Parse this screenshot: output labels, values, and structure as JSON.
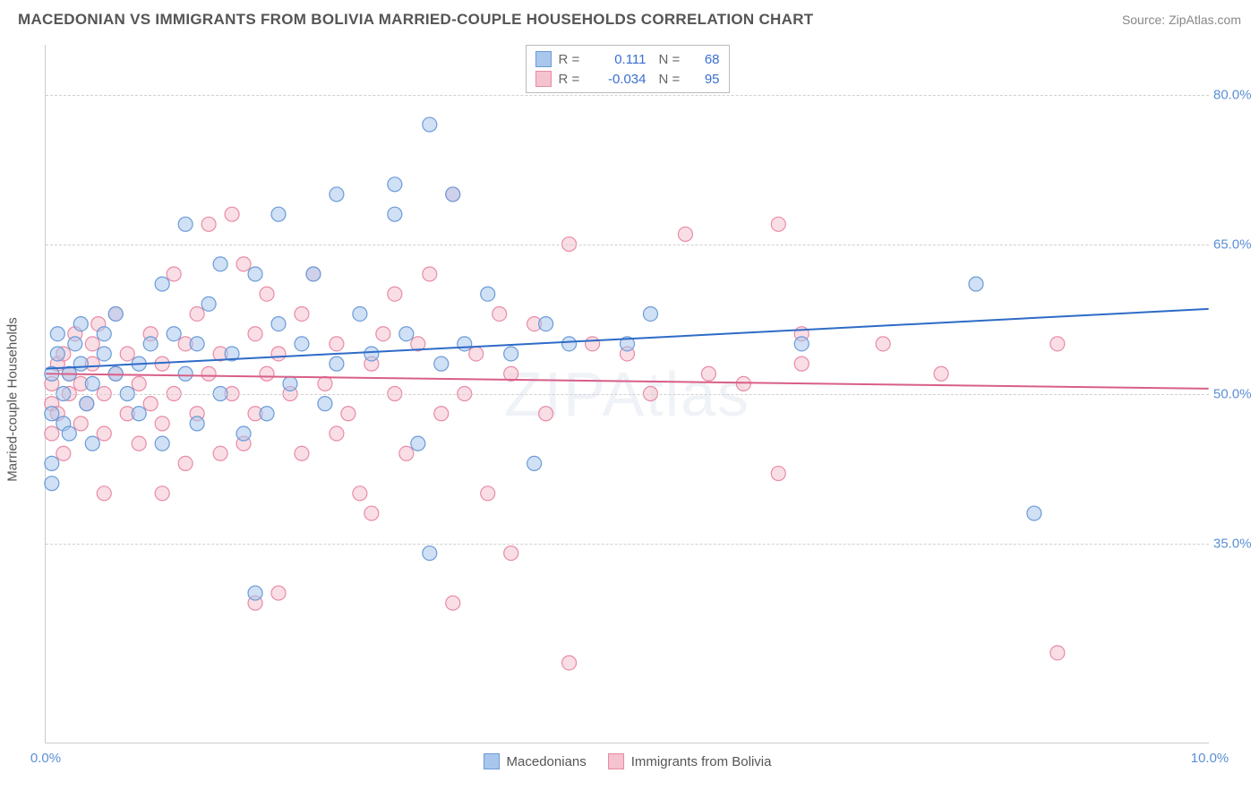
{
  "header": {
    "title": "MACEDONIAN VS IMMIGRANTS FROM BOLIVIA MARRIED-COUPLE HOUSEHOLDS CORRELATION CHART",
    "source": "Source: ZipAtlas.com"
  },
  "watermark": "ZIPAtlas",
  "chart": {
    "type": "scatter",
    "ylabel": "Married-couple Households",
    "xlim": [
      0,
      10
    ],
    "ylim": [
      15,
      85
    ],
    "xticks": [
      {
        "v": 0,
        "label": "0.0%"
      },
      {
        "v": 10,
        "label": "10.0%"
      }
    ],
    "yticks": [
      {
        "v": 35,
        "label": "35.0%"
      },
      {
        "v": 50,
        "label": "50.0%"
      },
      {
        "v": 65,
        "label": "65.0%"
      },
      {
        "v": 80,
        "label": "80.0%"
      }
    ],
    "grid_color": "#d0d0d0",
    "background_color": "#ffffff",
    "marker_radius": 8,
    "marker_opacity": 0.55,
    "line_width": 2,
    "series": [
      {
        "name": "Macedonians",
        "color_fill": "#a9c7ec",
        "color_stroke": "#6a9bd8",
        "line_color": "#2e6bc7",
        "R": "0.111",
        "N": "68",
        "trend": {
          "x1": 0,
          "y1": 52.5,
          "x2": 10,
          "y2": 58.5
        },
        "points": [
          [
            0.05,
            52
          ],
          [
            0.05,
            48
          ],
          [
            0.05,
            43
          ],
          [
            0.05,
            41
          ],
          [
            0.1,
            54
          ],
          [
            0.1,
            56
          ],
          [
            0.15,
            50
          ],
          [
            0.15,
            47
          ],
          [
            0.2,
            52
          ],
          [
            0.2,
            46
          ],
          [
            0.25,
            55
          ],
          [
            0.3,
            53
          ],
          [
            0.3,
            57
          ],
          [
            0.35,
            49
          ],
          [
            0.4,
            51
          ],
          [
            0.4,
            45
          ],
          [
            0.5,
            54
          ],
          [
            0.5,
            56
          ],
          [
            0.6,
            58
          ],
          [
            0.6,
            52
          ],
          [
            0.7,
            50
          ],
          [
            0.8,
            48
          ],
          [
            0.8,
            53
          ],
          [
            0.9,
            55
          ],
          [
            1.0,
            61
          ],
          [
            1.0,
            45
          ],
          [
            1.1,
            56
          ],
          [
            1.2,
            67
          ],
          [
            1.2,
            52
          ],
          [
            1.3,
            55
          ],
          [
            1.3,
            47
          ],
          [
            1.4,
            59
          ],
          [
            1.5,
            50
          ],
          [
            1.5,
            63
          ],
          [
            1.6,
            54
          ],
          [
            1.7,
            46
          ],
          [
            1.8,
            62
          ],
          [
            1.8,
            30
          ],
          [
            1.9,
            48
          ],
          [
            2.0,
            57
          ],
          [
            2.0,
            68
          ],
          [
            2.1,
            51
          ],
          [
            2.2,
            55
          ],
          [
            2.3,
            62
          ],
          [
            2.4,
            49
          ],
          [
            2.5,
            70
          ],
          [
            2.5,
            53
          ],
          [
            2.7,
            58
          ],
          [
            2.8,
            54
          ],
          [
            3.0,
            68
          ],
          [
            3.0,
            71
          ],
          [
            3.1,
            56
          ],
          [
            3.2,
            45
          ],
          [
            3.3,
            34
          ],
          [
            3.3,
            77
          ],
          [
            3.4,
            53
          ],
          [
            3.5,
            70
          ],
          [
            3.6,
            55
          ],
          [
            3.8,
            60
          ],
          [
            4.0,
            54
          ],
          [
            4.2,
            43
          ],
          [
            4.3,
            57
          ],
          [
            4.5,
            55
          ],
          [
            5.0,
            55
          ],
          [
            5.2,
            58
          ],
          [
            6.5,
            55
          ],
          [
            8.0,
            61
          ],
          [
            8.5,
            38
          ]
        ]
      },
      {
        "name": "Immigrants from Bolivia",
        "color_fill": "#f5c2cf",
        "color_stroke": "#e88ba5",
        "line_color": "#d85f88",
        "R": "-0.034",
        "N": "95",
        "trend": {
          "x1": 0,
          "y1": 52.0,
          "x2": 10,
          "y2": 50.5
        },
        "points": [
          [
            0.05,
            51
          ],
          [
            0.05,
            49
          ],
          [
            0.05,
            46
          ],
          [
            0.1,
            53
          ],
          [
            0.1,
            48
          ],
          [
            0.15,
            54
          ],
          [
            0.15,
            44
          ],
          [
            0.2,
            52
          ],
          [
            0.2,
            50
          ],
          [
            0.25,
            56
          ],
          [
            0.3,
            51
          ],
          [
            0.3,
            47
          ],
          [
            0.35,
            49
          ],
          [
            0.4,
            53
          ],
          [
            0.4,
            55
          ],
          [
            0.45,
            57
          ],
          [
            0.5,
            50
          ],
          [
            0.5,
            46
          ],
          [
            0.5,
            40
          ],
          [
            0.6,
            52
          ],
          [
            0.6,
            58
          ],
          [
            0.7,
            54
          ],
          [
            0.7,
            48
          ],
          [
            0.8,
            51
          ],
          [
            0.8,
            45
          ],
          [
            0.9,
            56
          ],
          [
            0.9,
            49
          ],
          [
            1.0,
            53
          ],
          [
            1.0,
            47
          ],
          [
            1.0,
            40
          ],
          [
            1.1,
            62
          ],
          [
            1.1,
            50
          ],
          [
            1.2,
            55
          ],
          [
            1.2,
            43
          ],
          [
            1.3,
            58
          ],
          [
            1.3,
            48
          ],
          [
            1.4,
            52
          ],
          [
            1.4,
            67
          ],
          [
            1.5,
            54
          ],
          [
            1.5,
            44
          ],
          [
            1.6,
            68
          ],
          [
            1.6,
            50
          ],
          [
            1.7,
            63
          ],
          [
            1.7,
            45
          ],
          [
            1.8,
            56
          ],
          [
            1.8,
            48
          ],
          [
            1.8,
            29
          ],
          [
            1.9,
            52
          ],
          [
            1.9,
            60
          ],
          [
            2.0,
            30
          ],
          [
            2.0,
            54
          ],
          [
            2.1,
            50
          ],
          [
            2.2,
            58
          ],
          [
            2.2,
            44
          ],
          [
            2.3,
            62
          ],
          [
            2.4,
            51
          ],
          [
            2.5,
            55
          ],
          [
            2.5,
            46
          ],
          [
            2.6,
            48
          ],
          [
            2.7,
            40
          ],
          [
            2.8,
            53
          ],
          [
            2.8,
            38
          ],
          [
            2.9,
            56
          ],
          [
            3.0,
            60
          ],
          [
            3.0,
            50
          ],
          [
            3.1,
            44
          ],
          [
            3.2,
            55
          ],
          [
            3.3,
            62
          ],
          [
            3.4,
            48
          ],
          [
            3.5,
            70
          ],
          [
            3.5,
            29
          ],
          [
            3.6,
            50
          ],
          [
            3.7,
            54
          ],
          [
            3.8,
            40
          ],
          [
            3.9,
            58
          ],
          [
            4.0,
            34
          ],
          [
            4.0,
            52
          ],
          [
            4.2,
            57
          ],
          [
            4.3,
            48
          ],
          [
            4.5,
            65
          ],
          [
            4.5,
            23
          ],
          [
            4.7,
            55
          ],
          [
            5.0,
            54
          ],
          [
            5.2,
            50
          ],
          [
            5.5,
            66
          ],
          [
            5.7,
            52
          ],
          [
            6.0,
            51
          ],
          [
            6.3,
            42
          ],
          [
            6.3,
            67
          ],
          [
            6.5,
            53
          ],
          [
            6.5,
            56
          ],
          [
            7.2,
            55
          ],
          [
            7.7,
            52
          ],
          [
            8.7,
            24
          ],
          [
            8.7,
            55
          ]
        ]
      }
    ]
  },
  "legend_bottom": [
    {
      "label": "Macedonians",
      "fill": "#a9c7ec",
      "stroke": "#6a9bd8"
    },
    {
      "label": "Immigrants from Bolivia",
      "fill": "#f5c2cf",
      "stroke": "#e88ba5"
    }
  ]
}
